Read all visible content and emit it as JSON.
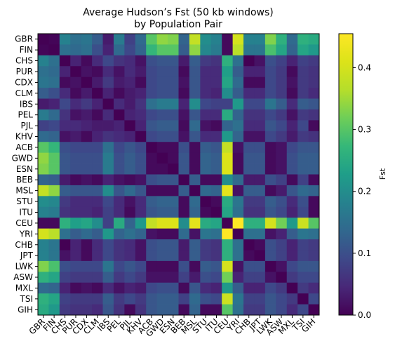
{
  "chart_data": {
    "type": "heatmap",
    "title_lines": [
      "Average Hudson’s Fst (50 kb windows)",
      "by Population Pair"
    ],
    "colorbar_label": "Fst",
    "colormap": "viridis",
    "vmin": 0,
    "vmax": 0.455,
    "colorbar_ticks": [
      0.0,
      0.1,
      0.2,
      0.3,
      0.4
    ],
    "colorbar_tick_labels": [
      "0.0",
      "0.1",
      "0.2",
      "0.3",
      "0.4"
    ],
    "populations": [
      "GBR",
      "FIN",
      "CHS",
      "PUR",
      "CDX",
      "CLM",
      "IBS",
      "PEL",
      "PJL",
      "KHV",
      "ACB",
      "GWD",
      "ESN",
      "BEB",
      "MSL",
      "STU",
      "ITU",
      "CEU",
      "YRI",
      "CHB",
      "JPT",
      "LWK",
      "ASW",
      "MXL",
      "TSI",
      "GIH"
    ],
    "row_tick_labels": [
      "GBR",
      "FIN",
      "CHS",
      "PUR",
      "CDX",
      "CLM",
      "IBS",
      "PEL",
      "PJL",
      "KHV",
      "ACB",
      "GWD",
      "ESN",
      "BEB",
      "MSL",
      "STU",
      "ITU",
      "CEU",
      "YRI",
      "CHB",
      "JPT",
      "LWK",
      "ASW",
      "MXL",
      "TSI",
      "GIH"
    ],
    "col_tick_labels": [
      "GBR",
      "FIN",
      "CHS",
      "PUR",
      "CDX",
      "CLM",
      "IBS",
      "PEL",
      "PJL",
      "KHV",
      "ACB",
      "GWD",
      "ESN",
      "BEB",
      "MSL",
      "STU",
      "ITU",
      "CEU",
      "YRI",
      "CHB",
      "JPT",
      "LWK",
      "ASW",
      "MXL",
      "TSI",
      "GIH"
    ],
    "values": [
      [
        0.0,
        0.005,
        0.18,
        0.15,
        0.16,
        0.12,
        0.03,
        0.17,
        0.08,
        0.14,
        0.3,
        0.34,
        0.33,
        0.13,
        0.38,
        0.2,
        0.18,
        0.01,
        0.4,
        0.18,
        0.18,
        0.33,
        0.26,
        0.14,
        0.26,
        0.25
      ],
      [
        0.005,
        0.0,
        0.15,
        0.14,
        0.15,
        0.1,
        0.04,
        0.14,
        0.09,
        0.13,
        0.27,
        0.3,
        0.3,
        0.12,
        0.34,
        0.19,
        0.17,
        0.01,
        0.37,
        0.16,
        0.16,
        0.29,
        0.24,
        0.13,
        0.24,
        0.22
      ],
      [
        0.18,
        0.15,
        0.0,
        0.04,
        0.01,
        0.05,
        0.09,
        0.06,
        0.05,
        0.02,
        0.1,
        0.11,
        0.11,
        0.03,
        0.12,
        0.07,
        0.06,
        0.26,
        0.15,
        0.0,
        0.02,
        0.1,
        0.08,
        0.04,
        0.08,
        0.07
      ],
      [
        0.15,
        0.14,
        0.04,
        0.0,
        0.02,
        0.01,
        0.05,
        0.02,
        0.05,
        0.03,
        0.09,
        0.1,
        0.1,
        0.01,
        0.11,
        0.05,
        0.05,
        0.23,
        0.12,
        0.04,
        0.04,
        0.09,
        0.07,
        0.01,
        0.07,
        0.06
      ],
      [
        0.16,
        0.15,
        0.01,
        0.02,
        0.0,
        0.03,
        0.07,
        0.03,
        0.04,
        0.01,
        0.09,
        0.1,
        0.1,
        0.02,
        0.11,
        0.05,
        0.05,
        0.24,
        0.14,
        0.01,
        0.01,
        0.09,
        0.07,
        0.02,
        0.07,
        0.06
      ],
      [
        0.12,
        0.1,
        0.05,
        0.01,
        0.03,
        0.0,
        0.04,
        0.01,
        0.03,
        0.04,
        0.09,
        0.1,
        0.1,
        0.01,
        0.11,
        0.05,
        0.04,
        0.2,
        0.12,
        0.05,
        0.05,
        0.09,
        0.07,
        0.01,
        0.07,
        0.05
      ],
      [
        0.03,
        0.04,
        0.09,
        0.05,
        0.07,
        0.04,
        0.0,
        0.05,
        0.03,
        0.06,
        0.15,
        0.17,
        0.17,
        0.04,
        0.2,
        0.09,
        0.08,
        0.08,
        0.22,
        0.09,
        0.09,
        0.16,
        0.12,
        0.05,
        0.12,
        0.11
      ],
      [
        0.17,
        0.14,
        0.06,
        0.02,
        0.03,
        0.01,
        0.05,
        0.0,
        0.04,
        0.05,
        0.09,
        0.1,
        0.1,
        0.02,
        0.11,
        0.05,
        0.05,
        0.25,
        0.13,
        0.06,
        0.06,
        0.09,
        0.07,
        0.02,
        0.07,
        0.06
      ],
      [
        0.08,
        0.09,
        0.05,
        0.05,
        0.04,
        0.03,
        0.03,
        0.04,
        0.0,
        0.04,
        0.11,
        0.12,
        0.12,
        0.01,
        0.14,
        0.02,
        0.01,
        0.13,
        0.15,
        0.05,
        0.05,
        0.11,
        0.09,
        0.04,
        0.09,
        0.01
      ],
      [
        0.14,
        0.13,
        0.02,
        0.03,
        0.01,
        0.04,
        0.06,
        0.05,
        0.04,
        0.0,
        0.09,
        0.1,
        0.1,
        0.02,
        0.11,
        0.05,
        0.05,
        0.22,
        0.13,
        0.02,
        0.02,
        0.09,
        0.07,
        0.03,
        0.07,
        0.06
      ],
      [
        0.3,
        0.27,
        0.1,
        0.09,
        0.09,
        0.09,
        0.15,
        0.09,
        0.11,
        0.09,
        0.0,
        0.01,
        0.01,
        0.1,
        0.01,
        0.12,
        0.11,
        0.38,
        0.02,
        0.1,
        0.1,
        0.01,
        0.02,
        0.09,
        0.11,
        0.11
      ],
      [
        0.34,
        0.3,
        0.11,
        0.1,
        0.1,
        0.1,
        0.17,
        0.1,
        0.12,
        0.1,
        0.01,
        0.0,
        0.01,
        0.11,
        0.01,
        0.13,
        0.12,
        0.41,
        0.01,
        0.11,
        0.11,
        0.01,
        0.02,
        0.1,
        0.12,
        0.12
      ],
      [
        0.33,
        0.3,
        0.11,
        0.1,
        0.1,
        0.1,
        0.17,
        0.1,
        0.12,
        0.1,
        0.01,
        0.01,
        0.0,
        0.11,
        0.01,
        0.13,
        0.12,
        0.41,
        0.01,
        0.11,
        0.11,
        0.01,
        0.02,
        0.1,
        0.12,
        0.12
      ],
      [
        0.13,
        0.12,
        0.03,
        0.01,
        0.02,
        0.01,
        0.04,
        0.02,
        0.01,
        0.02,
        0.1,
        0.11,
        0.11,
        0.0,
        0.12,
        0.01,
        0.01,
        0.2,
        0.14,
        0.03,
        0.03,
        0.1,
        0.08,
        0.01,
        0.08,
        0.01
      ],
      [
        0.38,
        0.34,
        0.12,
        0.11,
        0.11,
        0.11,
        0.2,
        0.11,
        0.14,
        0.11,
        0.01,
        0.01,
        0.01,
        0.12,
        0.0,
        0.14,
        0.13,
        0.42,
        0.02,
        0.12,
        0.12,
        0.01,
        0.03,
        0.11,
        0.14,
        0.13
      ],
      [
        0.2,
        0.19,
        0.07,
        0.05,
        0.05,
        0.05,
        0.09,
        0.05,
        0.02,
        0.05,
        0.12,
        0.13,
        0.13,
        0.01,
        0.14,
        0.0,
        0.01,
        0.25,
        0.16,
        0.07,
        0.07,
        0.12,
        0.1,
        0.05,
        0.1,
        0.01
      ],
      [
        0.18,
        0.17,
        0.06,
        0.05,
        0.05,
        0.04,
        0.08,
        0.05,
        0.01,
        0.05,
        0.11,
        0.12,
        0.12,
        0.01,
        0.13,
        0.01,
        0.0,
        0.24,
        0.15,
        0.06,
        0.06,
        0.11,
        0.09,
        0.04,
        0.09,
        0.01
      ],
      [
        0.01,
        0.01,
        0.26,
        0.23,
        0.24,
        0.2,
        0.08,
        0.25,
        0.13,
        0.22,
        0.38,
        0.41,
        0.41,
        0.2,
        0.42,
        0.25,
        0.24,
        0.0,
        0.455,
        0.26,
        0.26,
        0.4,
        0.32,
        0.22,
        0.39,
        0.3
      ],
      [
        0.4,
        0.37,
        0.15,
        0.12,
        0.14,
        0.12,
        0.22,
        0.13,
        0.15,
        0.13,
        0.02,
        0.01,
        0.01,
        0.14,
        0.02,
        0.16,
        0.15,
        0.455,
        0.0,
        0.15,
        0.15,
        0.02,
        0.04,
        0.12,
        0.16,
        0.15
      ],
      [
        0.18,
        0.16,
        0.0,
        0.04,
        0.01,
        0.05,
        0.09,
        0.06,
        0.05,
        0.02,
        0.1,
        0.11,
        0.11,
        0.03,
        0.12,
        0.07,
        0.06,
        0.26,
        0.15,
        0.0,
        0.01,
        0.1,
        0.08,
        0.04,
        0.08,
        0.07
      ],
      [
        0.18,
        0.16,
        0.02,
        0.04,
        0.01,
        0.05,
        0.09,
        0.06,
        0.05,
        0.02,
        0.1,
        0.11,
        0.11,
        0.03,
        0.12,
        0.07,
        0.06,
        0.26,
        0.15,
        0.01,
        0.0,
        0.1,
        0.08,
        0.04,
        0.08,
        0.07
      ],
      [
        0.33,
        0.29,
        0.1,
        0.09,
        0.09,
        0.09,
        0.16,
        0.09,
        0.11,
        0.09,
        0.01,
        0.01,
        0.01,
        0.1,
        0.01,
        0.12,
        0.11,
        0.4,
        0.02,
        0.1,
        0.1,
        0.0,
        0.02,
        0.09,
        0.11,
        0.11
      ],
      [
        0.26,
        0.24,
        0.08,
        0.07,
        0.07,
        0.07,
        0.12,
        0.07,
        0.09,
        0.07,
        0.02,
        0.02,
        0.02,
        0.08,
        0.03,
        0.1,
        0.09,
        0.32,
        0.04,
        0.08,
        0.08,
        0.02,
        0.0,
        0.07,
        0.09,
        0.09
      ],
      [
        0.14,
        0.13,
        0.04,
        0.01,
        0.02,
        0.01,
        0.05,
        0.02,
        0.04,
        0.03,
        0.09,
        0.1,
        0.1,
        0.01,
        0.11,
        0.05,
        0.04,
        0.22,
        0.12,
        0.04,
        0.04,
        0.09,
        0.07,
        0.0,
        0.07,
        0.05
      ],
      [
        0.26,
        0.24,
        0.08,
        0.07,
        0.07,
        0.07,
        0.12,
        0.07,
        0.09,
        0.07,
        0.11,
        0.12,
        0.12,
        0.08,
        0.14,
        0.1,
        0.09,
        0.39,
        0.16,
        0.08,
        0.08,
        0.11,
        0.09,
        0.07,
        0.0,
        0.09
      ],
      [
        0.25,
        0.22,
        0.07,
        0.06,
        0.06,
        0.05,
        0.11,
        0.06,
        0.01,
        0.06,
        0.11,
        0.12,
        0.12,
        0.01,
        0.13,
        0.01,
        0.01,
        0.3,
        0.15,
        0.07,
        0.07,
        0.11,
        0.09,
        0.05,
        0.09,
        0.0
      ]
    ]
  }
}
